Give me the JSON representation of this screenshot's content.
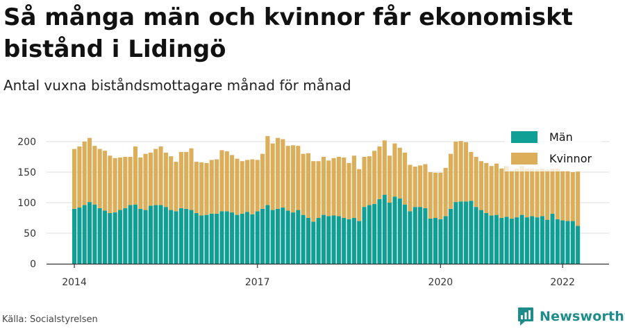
{
  "title": "Så många män och kvinnor får ekonomiskt bistånd i Lidingö",
  "subtitle": "Antal vuxna biståndsmottagare månad för månad",
  "source": "Källa: Socialstyrelsen",
  "brand": {
    "name": "Newsworthy",
    "icon": "newsworthy-logo-icon"
  },
  "colors": {
    "men": "#0f9f94",
    "women": "#dcae5a",
    "grid": "#dddddd",
    "axis": "#333333",
    "brand": "#1e8c8a"
  },
  "chart_data": {
    "type": "bar",
    "stacked": true,
    "start_month": "2014-01",
    "series": [
      {
        "name": "Män",
        "color": "#0f9f94",
        "values": [
          90,
          92,
          96,
          101,
          97,
          91,
          87,
          83,
          84,
          88,
          91,
          96,
          97,
          90,
          88,
          95,
          96,
          96,
          93,
          88,
          86,
          91,
          90,
          88,
          83,
          79,
          80,
          82,
          82,
          86,
          86,
          84,
          80,
          82,
          85,
          81,
          86,
          90,
          96,
          88,
          90,
          92,
          87,
          84,
          88,
          80,
          75,
          69,
          75,
          80,
          78,
          79,
          78,
          75,
          73,
          75,
          70,
          93,
          96,
          98,
          106,
          113,
          100,
          110,
          107,
          97,
          86,
          93,
          93,
          91,
          74,
          75,
          73,
          78,
          90,
          101,
          102,
          102,
          103,
          93,
          88,
          83,
          79,
          80,
          75,
          77,
          74,
          76,
          80,
          76,
          78,
          76,
          78,
          72,
          82,
          73,
          71,
          70,
          70,
          62
        ]
      },
      {
        "name": "Kvinnor",
        "color": "#dcae5a",
        "values": [
          98,
          100,
          104,
          105,
          96,
          97,
          98,
          94,
          89,
          86,
          84,
          79,
          95,
          84,
          92,
          87,
          92,
          96,
          89,
          88,
          81,
          92,
          93,
          101,
          84,
          87,
          85,
          88,
          89,
          100,
          98,
          94,
          92,
          86,
          85,
          90,
          84,
          90,
          113,
          109,
          116,
          112,
          106,
          110,
          105,
          100,
          106,
          99,
          93,
          95,
          91,
          94,
          97,
          99,
          92,
          102,
          85,
          82,
          80,
          87,
          86,
          89,
          77,
          87,
          83,
          85,
          76,
          66,
          68,
          72,
          76,
          74,
          76,
          79,
          90,
          99,
          99,
          97,
          80,
          82,
          80,
          82,
          81,
          84,
          81,
          83,
          79,
          80,
          80,
          80,
          78,
          79,
          78,
          82,
          74,
          83,
          81,
          82,
          80,
          89
        ]
      }
    ],
    "legend": [
      "Män",
      "Kvinnor"
    ],
    "legend_position": "top-right",
    "x_ticks": [
      "2014",
      "2017",
      "2020",
      "2022"
    ],
    "y_ticks": [
      0,
      50,
      100,
      150,
      200
    ],
    "ylim": [
      0,
      230
    ],
    "grid": "horizontal"
  }
}
